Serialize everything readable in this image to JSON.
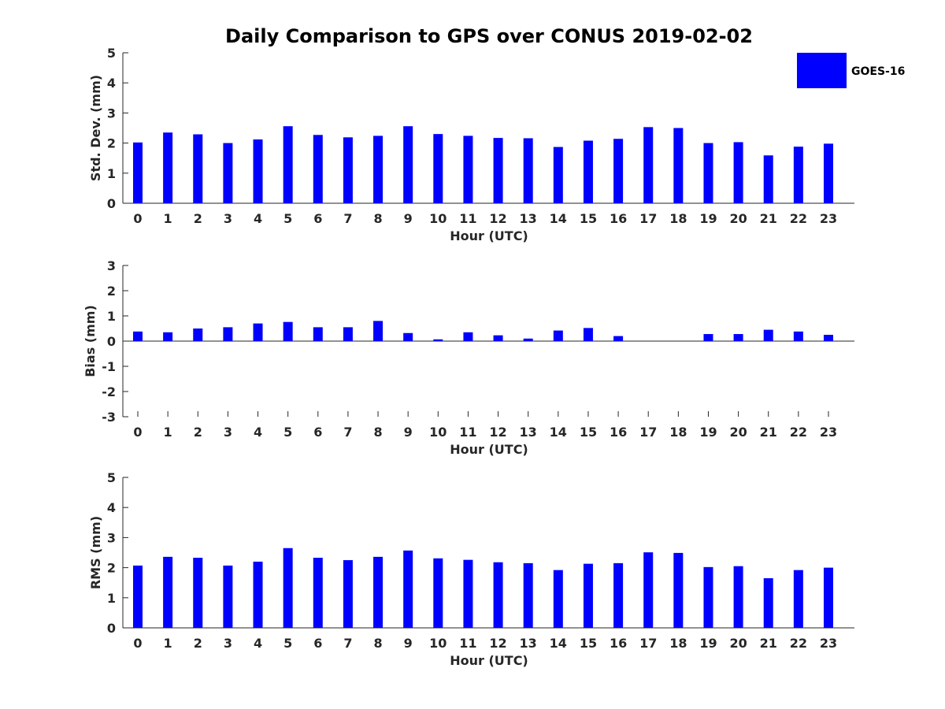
{
  "chart_data": {
    "title": "Daily Comparison to GPS over CONUS 2019-02-02",
    "legend": {
      "label": "GOES-16",
      "color": "#0000ff",
      "placement": "top-right"
    },
    "bar_color": "#0000ff",
    "categories": [
      "0",
      "1",
      "2",
      "3",
      "4",
      "5",
      "6",
      "7",
      "8",
      "9",
      "10",
      "11",
      "12",
      "13",
      "14",
      "15",
      "16",
      "17",
      "18",
      "19",
      "20",
      "21",
      "22",
      "23"
    ],
    "panels": [
      {
        "type": "bar",
        "ylabel": "Std. Dev. (mm)",
        "xlabel": "Hour (UTC)",
        "ylim": [
          0,
          5
        ],
        "yticks": [
          "0",
          "1",
          "2",
          "3",
          "4",
          "5"
        ],
        "values": [
          2.02,
          2.35,
          2.29,
          2.0,
          2.12,
          2.56,
          2.27,
          2.19,
          2.24,
          2.56,
          2.3,
          2.24,
          2.17,
          2.16,
          1.87,
          2.08,
          2.14,
          2.53,
          2.5,
          2.0,
          2.03,
          1.59,
          1.88,
          1.98
        ]
      },
      {
        "type": "bar",
        "ylabel": "Bias (mm)",
        "xlabel": "Hour (UTC)",
        "ylim": [
          -3,
          3
        ],
        "yticks": [
          "-3",
          "-2",
          "-1",
          "0",
          "1",
          "2",
          "3"
        ],
        "values": [
          0.38,
          0.35,
          0.5,
          0.55,
          0.7,
          0.76,
          0.55,
          0.55,
          0.8,
          0.32,
          0.07,
          0.35,
          0.23,
          0.1,
          0.42,
          0.52,
          0.2,
          0.0,
          0.0,
          0.28,
          0.28,
          0.45,
          0.38,
          0.25
        ]
      },
      {
        "type": "bar",
        "ylabel": "RMS (mm)",
        "xlabel": "Hour (UTC)",
        "ylim": [
          0,
          5
        ],
        "yticks": [
          "0",
          "1",
          "2",
          "3",
          "4",
          "5"
        ],
        "values": [
          2.07,
          2.36,
          2.33,
          2.07,
          2.2,
          2.65,
          2.33,
          2.25,
          2.36,
          2.57,
          2.31,
          2.26,
          2.18,
          2.15,
          1.92,
          2.13,
          2.15,
          2.51,
          2.49,
          2.02,
          2.05,
          1.65,
          1.92,
          2.0
        ]
      }
    ]
  }
}
